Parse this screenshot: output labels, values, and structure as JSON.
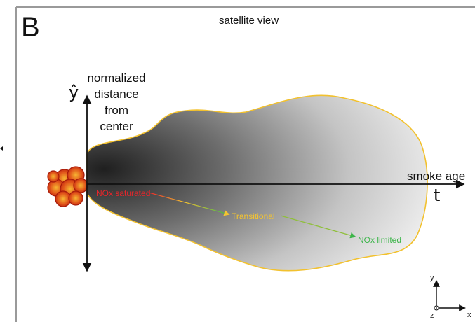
{
  "panel": {
    "letter": "B",
    "title": "satellite view"
  },
  "axes": {
    "y_label_lines": [
      "normalized",
      "distance",
      "from",
      "center"
    ],
    "y_symbol": "ŷ",
    "x_label": "smoke age",
    "x_symbol": "t"
  },
  "regimes": [
    {
      "label": "NOx saturated",
      "color": "#e8262b"
    },
    {
      "label": "Transitional",
      "color": "#f4c430"
    },
    {
      "label": "NOx limited",
      "color": "#3cb54a"
    }
  ],
  "mini_axes": {
    "y": "y",
    "x": "x",
    "z": "z"
  },
  "colors": {
    "plume_outline": "#f2c12e",
    "plume_dark": "#2e2e2e",
    "plume_light": "#f0f0f0",
    "fire_dark": "#c0200c",
    "fire_light": "#f39a1c",
    "frame": "#9a9a9a"
  },
  "icons": {
    "fire": "fire-icon",
    "left_arrow": "arrow-right-icon"
  }
}
